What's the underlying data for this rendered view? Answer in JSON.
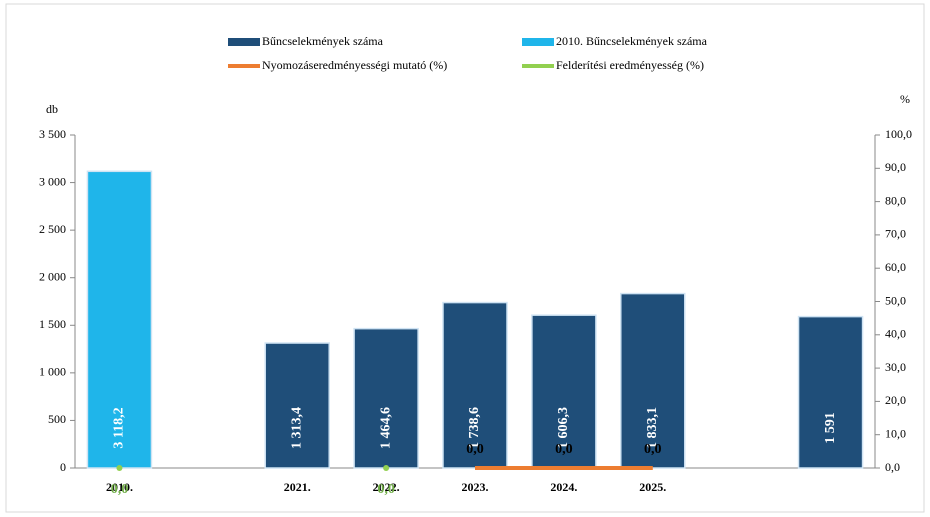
{
  "chart_data": {
    "type": "bar",
    "y_label": "db",
    "y2_label": "%",
    "categories": [
      "2010.",
      null,
      "2021.",
      "2022.",
      "2023.",
      "2024.",
      "2025.",
      null,
      null
    ],
    "series": [
      {
        "name": "Bűncselekmények száma",
        "type": "bar",
        "color": "#1f4e79",
        "values": [
          null,
          null,
          1313.4,
          1464.6,
          1738.6,
          1606.3,
          1833.1,
          null,
          1591
        ],
        "value_labels": [
          null,
          null,
          "1 313,4",
          "1 464,6",
          "1 738,6",
          "1 606,3",
          "1 833,1",
          null,
          "1 591"
        ]
      },
      {
        "name": "2010. Bűncselekmények száma",
        "type": "bar",
        "color": "#1fb5ea",
        "values": [
          3118.2,
          null,
          null,
          null,
          null,
          null,
          null,
          null,
          null
        ],
        "value_labels": [
          "3 118,2",
          null,
          null,
          null,
          null,
          null,
          null,
          null,
          null
        ]
      },
      {
        "name": "Nyomozáseredményességi mutató (%)",
        "type": "line",
        "axis": "y2",
        "color": "#ed7d31",
        "values": [
          null,
          null,
          null,
          null,
          0,
          0,
          0,
          null,
          null
        ],
        "value_labels": [
          null,
          null,
          null,
          null,
          "0,0",
          "0,0",
          "0,0",
          null,
          null
        ]
      },
      {
        "name": "Felderítési eredményesség (%)",
        "type": "line",
        "axis": "y2",
        "color": "#92d050",
        "values": [
          0,
          null,
          null,
          0,
          null,
          null,
          null,
          null,
          null
        ],
        "value_labels": [
          "0,0",
          null,
          null,
          "0,0",
          null,
          null,
          null,
          null,
          null
        ]
      }
    ],
    "ylim": [
      0,
      3500
    ],
    "yticks": [
      0,
      {
        "value": 500,
        "label": "500"
      },
      {
        "value": 1000,
        "label": "1 000"
      },
      {
        "value": 1500,
        "label": "1 500"
      },
      {
        "value": 2000,
        "label": "2 000"
      },
      {
        "value": 2500,
        "label": "2 500"
      },
      {
        "value": 3000,
        "label": "3 000"
      },
      {
        "value": 3500,
        "label": "3 500"
      }
    ],
    "y2lim": [
      0,
      100
    ],
    "y2ticks": [
      {
        "value": 0,
        "label": "0,0"
      },
      {
        "value": 10,
        "label": "10,0"
      },
      {
        "value": 20,
        "label": "20,0"
      },
      {
        "value": 30,
        "label": "30,0"
      },
      {
        "value": 40,
        "label": "40,0"
      },
      {
        "value": 50,
        "label": "50,0"
      },
      {
        "value": 60,
        "label": "60,0"
      },
      {
        "value": 70,
        "label": "70,0"
      },
      {
        "value": 80,
        "label": "80,0"
      },
      {
        "value": 90,
        "label": "90,0"
      },
      {
        "value": 100,
        "label": "100,0"
      }
    ]
  }
}
